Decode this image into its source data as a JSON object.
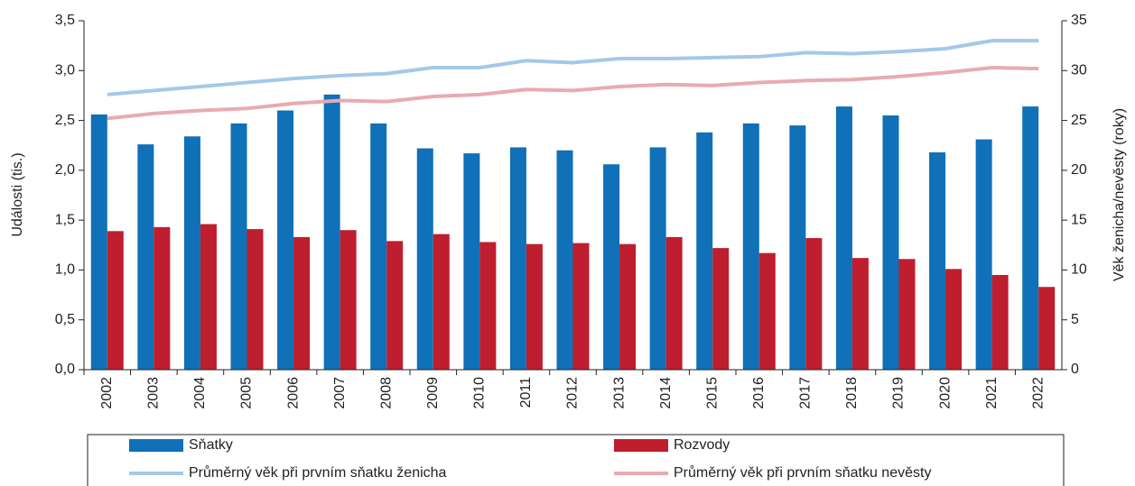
{
  "chart_data": {
    "type": "bar-line",
    "y_label": "Události (tis.)",
    "y2_label": "Věk ženicha/nevěsty (roky)",
    "categories": [
      "2002",
      "2003",
      "2004",
      "2005",
      "2006",
      "2007",
      "2008",
      "2009",
      "2010",
      "2011",
      "2012",
      "2013",
      "2014",
      "2015",
      "2016",
      "2017",
      "2018",
      "2019",
      "2020",
      "2021",
      "2022"
    ],
    "series": [
      {
        "name": "Sňatky",
        "type": "bar",
        "color": "#1070b8",
        "values": [
          2.56,
          2.26,
          2.34,
          2.47,
          2.6,
          2.76,
          2.47,
          2.22,
          2.17,
          2.23,
          2.2,
          2.06,
          2.23,
          2.38,
          2.47,
          2.45,
          2.64,
          2.55,
          2.18,
          2.31,
          2.64
        ]
      },
      {
        "name": "Rozvody",
        "type": "bar",
        "color": "#be1e2d",
        "values": [
          1.39,
          1.43,
          1.46,
          1.41,
          1.33,
          1.4,
          1.29,
          1.36,
          1.28,
          1.26,
          1.27,
          1.26,
          1.33,
          1.22,
          1.17,
          1.32,
          1.12,
          1.11,
          1.01,
          0.95,
          0.83
        ]
      },
      {
        "name": "Průměrný věk při prvním sňatku ženicha",
        "type": "line",
        "axis": "y2",
        "color": "#a5c8e8",
        "values": [
          27.6,
          28.0,
          28.4,
          28.8,
          29.2,
          29.5,
          29.7,
          30.3,
          30.3,
          31.0,
          30.8,
          31.2,
          31.2,
          31.3,
          31.4,
          31.8,
          31.7,
          31.9,
          32.2,
          33.0,
          33.0
        ]
      },
      {
        "name": "Průměrný věk při prvním sňatku nevěsty",
        "type": "line",
        "axis": "y2",
        "color": "#e8aab1",
        "values": [
          25.2,
          25.7,
          26.0,
          26.2,
          26.7,
          27.0,
          26.9,
          27.4,
          27.6,
          28.1,
          28.0,
          28.4,
          28.6,
          28.5,
          28.8,
          29.0,
          29.1,
          29.4,
          29.8,
          30.3,
          30.2
        ]
      }
    ],
    "ylim": [
      0,
      3.5
    ],
    "yticks": [
      {
        "value": 0,
        "label": "0,0"
      },
      {
        "value": 0.5,
        "label": "0,5"
      },
      {
        "value": 1,
        "label": "1,0"
      },
      {
        "value": 1.5,
        "label": "1,5"
      },
      {
        "value": 2,
        "label": "2,0"
      },
      {
        "value": 2.5,
        "label": "2,5"
      },
      {
        "value": 3,
        "label": "3,0"
      },
      {
        "value": 3.5,
        "label": "3,5"
      }
    ],
    "y2lim": [
      0,
      35
    ],
    "y2ticks": [
      0,
      5,
      10,
      15,
      20,
      25,
      30,
      35
    ],
    "legend": "bottom"
  }
}
